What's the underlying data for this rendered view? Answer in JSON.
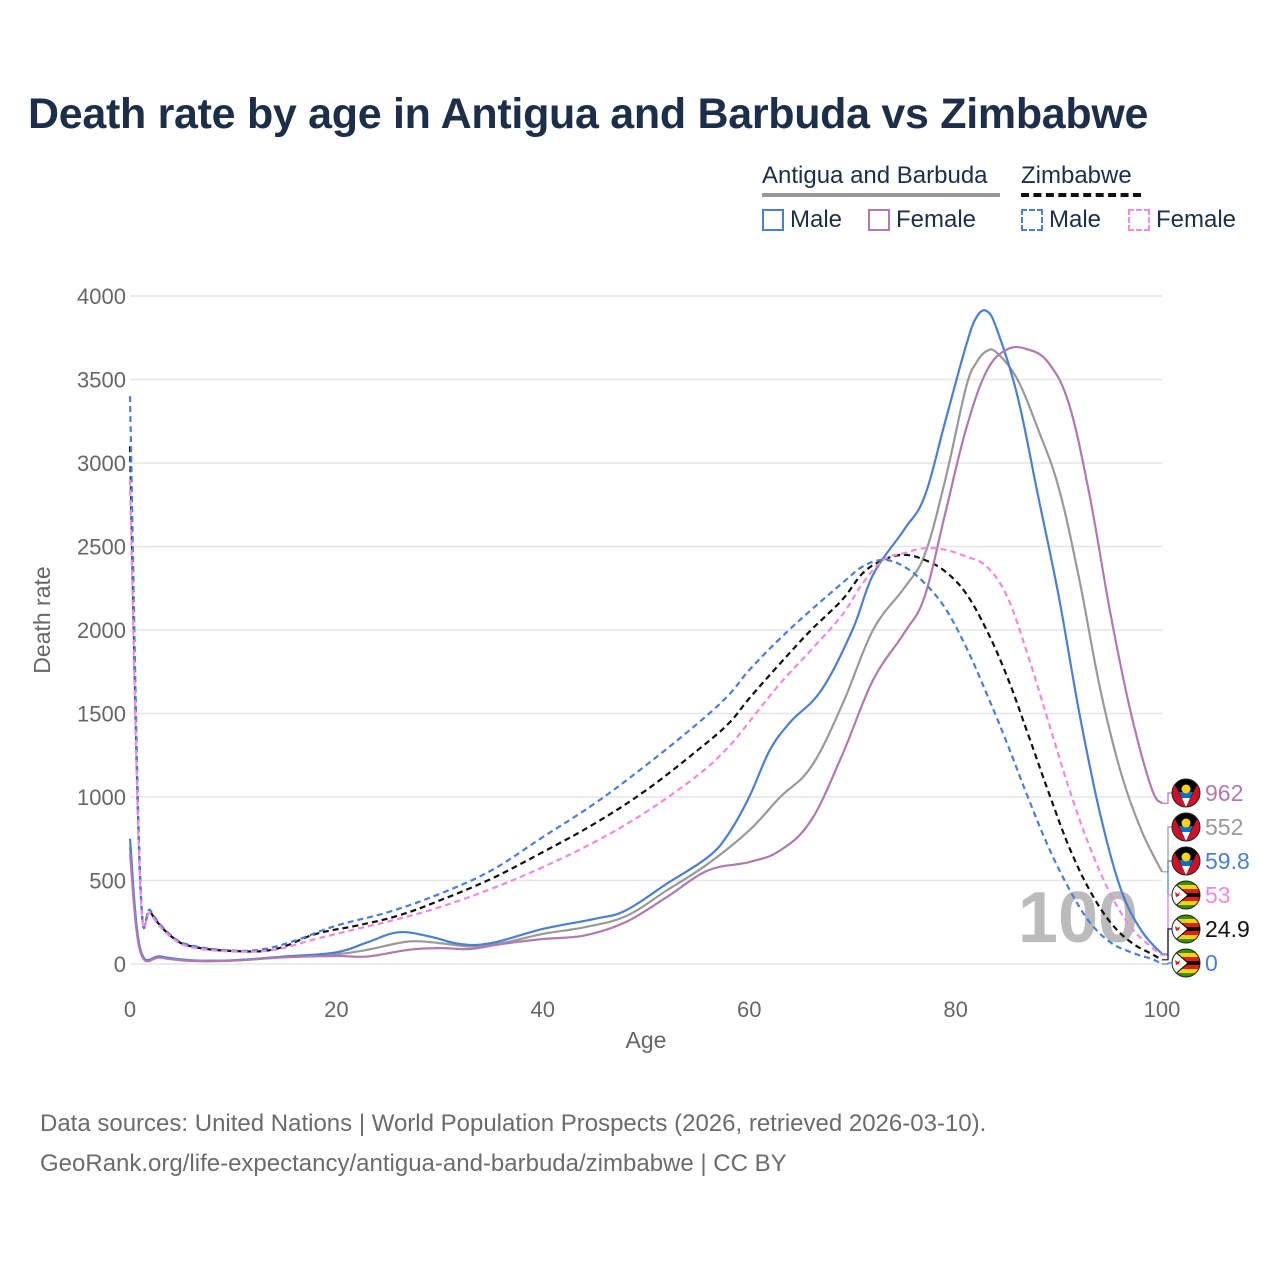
{
  "title": "Death rate by age in Antigua and Barbuda vs Zimbabwe",
  "legend": {
    "country_a": "Antigua and Barbuda",
    "country_b": "Zimbabwe",
    "male": "Male",
    "female": "Female"
  },
  "colors": {
    "male": "#4a7fd6",
    "female": "#b07ab0",
    "female_dashed": "#f08ae0",
    "country_a_avg": "#999999",
    "country_b_avg": "#111111",
    "grid": "#e6e6e6",
    "axis_text": "#666666",
    "title": "#1c2e4a",
    "watermark": "#bbbbbb"
  },
  "watermark": "100",
  "chart_data": {
    "type": "line",
    "xlabel": "Age",
    "ylabel": "Death rate",
    "xlim": [
      0,
      100
    ],
    "ylim": [
      0,
      4000
    ],
    "xticks": [
      0,
      20,
      40,
      60,
      80,
      100
    ],
    "yticks": [
      0,
      500,
      1000,
      1500,
      2000,
      2500,
      3000,
      3500,
      4000
    ],
    "series": [
      {
        "name": "Antigua and Barbuda Male",
        "country": "Antigua and Barbuda",
        "sex": "Male",
        "color": "#4a7fd6",
        "dash": false,
        "end_label": "59.8",
        "flag": "antigua",
        "points": [
          [
            0,
            750
          ],
          [
            1,
            90
          ],
          [
            3,
            45
          ],
          [
            6,
            22
          ],
          [
            10,
            22
          ],
          [
            15,
            45
          ],
          [
            20,
            70
          ],
          [
            23,
            130
          ],
          [
            26,
            190
          ],
          [
            29,
            165
          ],
          [
            32,
            120
          ],
          [
            35,
            125
          ],
          [
            40,
            210
          ],
          [
            45,
            270
          ],
          [
            48,
            320
          ],
          [
            52,
            480
          ],
          [
            56,
            640
          ],
          [
            58,
            780
          ],
          [
            60,
            1000
          ],
          [
            62,
            1280
          ],
          [
            64,
            1450
          ],
          [
            67,
            1640
          ],
          [
            70,
            2000
          ],
          [
            72,
            2330
          ],
          [
            75,
            2600
          ],
          [
            77,
            2800
          ],
          [
            79,
            3250
          ],
          [
            81,
            3700
          ],
          [
            82,
            3870
          ],
          [
            83,
            3910
          ],
          [
            84,
            3800
          ],
          [
            86,
            3400
          ],
          [
            88,
            2800
          ],
          [
            90,
            2200
          ],
          [
            92,
            1500
          ],
          [
            94,
            900
          ],
          [
            96,
            450
          ],
          [
            98,
            200
          ],
          [
            100,
            59.8
          ]
        ]
      },
      {
        "name": "Antigua and Barbuda Female",
        "country": "Antigua and Barbuda",
        "sex": "Female",
        "color": "#b07ab0",
        "dash": false,
        "end_label": "962",
        "flag": "antigua",
        "points": [
          [
            0,
            660
          ],
          [
            1,
            75
          ],
          [
            3,
            38
          ],
          [
            6,
            18
          ],
          [
            10,
            20
          ],
          [
            15,
            40
          ],
          [
            20,
            48
          ],
          [
            23,
            45
          ],
          [
            27,
            85
          ],
          [
            30,
            95
          ],
          [
            33,
            90
          ],
          [
            36,
            120
          ],
          [
            40,
            150
          ],
          [
            44,
            170
          ],
          [
            48,
            250
          ],
          [
            52,
            400
          ],
          [
            56,
            560
          ],
          [
            60,
            610
          ],
          [
            63,
            680
          ],
          [
            66,
            860
          ],
          [
            69,
            1250
          ],
          [
            72,
            1700
          ],
          [
            75,
            1980
          ],
          [
            77,
            2200
          ],
          [
            79,
            2700
          ],
          [
            81,
            3200
          ],
          [
            83,
            3550
          ],
          [
            85,
            3680
          ],
          [
            87,
            3680
          ],
          [
            89,
            3600
          ],
          [
            91,
            3350
          ],
          [
            93,
            2800
          ],
          [
            95,
            2100
          ],
          [
            97,
            1500
          ],
          [
            99,
            1050
          ],
          [
            100,
            962
          ]
        ]
      },
      {
        "name": "Antigua and Barbuda",
        "country": "Antigua and Barbuda",
        "sex": "Both",
        "color": "#999999",
        "dash": false,
        "end_label": "552",
        "flag": "antigua",
        "points": [
          [
            0,
            700
          ],
          [
            1,
            82
          ],
          [
            3,
            40
          ],
          [
            6,
            20
          ],
          [
            10,
            21
          ],
          [
            15,
            42
          ],
          [
            20,
            58
          ],
          [
            23,
            85
          ],
          [
            27,
            135
          ],
          [
            30,
            125
          ],
          [
            33,
            105
          ],
          [
            36,
            125
          ],
          [
            40,
            180
          ],
          [
            44,
            220
          ],
          [
            48,
            285
          ],
          [
            52,
            440
          ],
          [
            56,
            600
          ],
          [
            60,
            800
          ],
          [
            63,
            1000
          ],
          [
            66,
            1180
          ],
          [
            69,
            1550
          ],
          [
            72,
            2000
          ],
          [
            75,
            2250
          ],
          [
            77,
            2450
          ],
          [
            79,
            2900
          ],
          [
            81,
            3450
          ],
          [
            82,
            3600
          ],
          [
            83,
            3670
          ],
          [
            84,
            3660
          ],
          [
            86,
            3500
          ],
          [
            88,
            3200
          ],
          [
            90,
            2850
          ],
          [
            92,
            2300
          ],
          [
            94,
            1650
          ],
          [
            96,
            1150
          ],
          [
            98,
            800
          ],
          [
            100,
            552
          ]
        ]
      },
      {
        "name": "Zimbabwe Male",
        "country": "Zimbabwe",
        "sex": "Male",
        "color": "#4a7fd6",
        "dash": true,
        "end_label": "0",
        "flag": "zimbabwe",
        "points": [
          [
            0,
            3400
          ],
          [
            1,
            500
          ],
          [
            2,
            320
          ],
          [
            4,
            170
          ],
          [
            6,
            110
          ],
          [
            10,
            80
          ],
          [
            13,
            90
          ],
          [
            16,
            140
          ],
          [
            20,
            230
          ],
          [
            25,
            310
          ],
          [
            30,
            420
          ],
          [
            35,
            560
          ],
          [
            40,
            760
          ],
          [
            45,
            960
          ],
          [
            50,
            1190
          ],
          [
            55,
            1440
          ],
          [
            58,
            1610
          ],
          [
            60,
            1760
          ],
          [
            63,
            1950
          ],
          [
            66,
            2120
          ],
          [
            69,
            2280
          ],
          [
            71,
            2380
          ],
          [
            73,
            2420
          ],
          [
            75,
            2380
          ],
          [
            77,
            2280
          ],
          [
            79,
            2130
          ],
          [
            81,
            1900
          ],
          [
            83,
            1620
          ],
          [
            85,
            1320
          ],
          [
            87,
            1000
          ],
          [
            89,
            700
          ],
          [
            91,
            450
          ],
          [
            93,
            250
          ],
          [
            95,
            130
          ],
          [
            97,
            70
          ],
          [
            99,
            30
          ],
          [
            100,
            0
          ]
        ]
      },
      {
        "name": "Zimbabwe Female",
        "country": "Zimbabwe",
        "sex": "Female",
        "color": "#f08ae0",
        "dash": true,
        "end_label": "53",
        "flag": "zimbabwe",
        "points": [
          [
            0,
            2900
          ],
          [
            1,
            460
          ],
          [
            2,
            300
          ],
          [
            4,
            160
          ],
          [
            6,
            100
          ],
          [
            10,
            75
          ],
          [
            14,
            85
          ],
          [
            18,
            150
          ],
          [
            22,
            210
          ],
          [
            26,
            270
          ],
          [
            30,
            340
          ],
          [
            35,
            450
          ],
          [
            40,
            580
          ],
          [
            45,
            730
          ],
          [
            50,
            910
          ],
          [
            55,
            1130
          ],
          [
            58,
            1300
          ],
          [
            60,
            1450
          ],
          [
            63,
            1680
          ],
          [
            66,
            1880
          ],
          [
            69,
            2090
          ],
          [
            71,
            2280
          ],
          [
            73,
            2420
          ],
          [
            75,
            2460
          ],
          [
            77,
            2490
          ],
          [
            79,
            2480
          ],
          [
            81,
            2440
          ],
          [
            83,
            2380
          ],
          [
            85,
            2200
          ],
          [
            87,
            1850
          ],
          [
            89,
            1450
          ],
          [
            91,
            1050
          ],
          [
            93,
            700
          ],
          [
            95,
            420
          ],
          [
            97,
            220
          ],
          [
            99,
            100
          ],
          [
            100,
            53
          ]
        ]
      },
      {
        "name": "Zimbabwe",
        "country": "Zimbabwe",
        "sex": "Both",
        "color": "#111111",
        "dash": true,
        "end_label": "24.9",
        "flag": "zimbabwe",
        "points": [
          [
            0,
            3100
          ],
          [
            1,
            480
          ],
          [
            2,
            310
          ],
          [
            4,
            165
          ],
          [
            6,
            105
          ],
          [
            10,
            78
          ],
          [
            14,
            88
          ],
          [
            18,
            180
          ],
          [
            22,
            230
          ],
          [
            26,
            290
          ],
          [
            30,
            380
          ],
          [
            35,
            510
          ],
          [
            40,
            670
          ],
          [
            45,
            840
          ],
          [
            50,
            1040
          ],
          [
            55,
            1280
          ],
          [
            58,
            1440
          ],
          [
            60,
            1590
          ],
          [
            63,
            1800
          ],
          [
            66,
            2000
          ],
          [
            69,
            2180
          ],
          [
            71,
            2340
          ],
          [
            73,
            2420
          ],
          [
            75,
            2450
          ],
          [
            77,
            2420
          ],
          [
            79,
            2350
          ],
          [
            81,
            2220
          ],
          [
            83,
            2000
          ],
          [
            85,
            1720
          ],
          [
            87,
            1380
          ],
          [
            89,
            1030
          ],
          [
            91,
            700
          ],
          [
            93,
            440
          ],
          [
            95,
            250
          ],
          [
            97,
            130
          ],
          [
            99,
            60
          ],
          [
            100,
            24.9
          ]
        ]
      }
    ]
  },
  "footer": {
    "line1": "Data sources: United Nations | World Population Prospects (2026, retrieved 2026-03-10).",
    "line2": "GeoRank.org/life-expectancy/antigua-and-barbuda/zimbabwe | CC BY"
  }
}
